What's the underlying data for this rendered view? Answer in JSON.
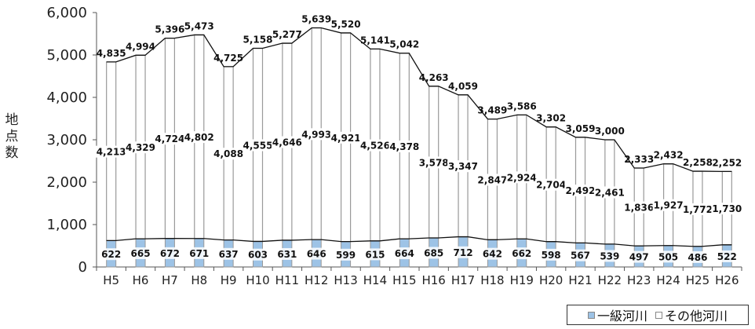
{
  "chart_data": {
    "type": "bar",
    "stacked": true,
    "categories": [
      "H5",
      "H6",
      "H7",
      "H8",
      "H9",
      "H10",
      "H11",
      "H12",
      "H13",
      "H14",
      "H15",
      "H16",
      "H17",
      "H18",
      "H19",
      "H20",
      "H21",
      "H22",
      "H23",
      "H24",
      "H25",
      "H26"
    ],
    "series": [
      {
        "name": "一級河川",
        "color": "#9dc3e6",
        "values": [
          622,
          665,
          672,
          671,
          637,
          603,
          631,
          646,
          599,
          615,
          664,
          685,
          712,
          642,
          662,
          598,
          567,
          539,
          497,
          505,
          486,
          522
        ],
        "labels": [
          "622",
          "665",
          "672",
          "671",
          "637",
          "603",
          "631",
          "646",
          "599",
          "615",
          "664",
          "685",
          "712",
          "642",
          "662",
          "598",
          "567",
          "539",
          "497",
          "505",
          "486",
          "522"
        ]
      },
      {
        "name": "その他河川",
        "color": "#ffffff",
        "values": [
          4213,
          4329,
          4724,
          4802,
          4088,
          4555,
          4646,
          4993,
          4921,
          4526,
          4378,
          3578,
          3347,
          2847,
          2924,
          2704,
          2492,
          2461,
          1836,
          1927,
          1772,
          1730
        ],
        "labels": [
          "4,213",
          "4,329",
          "4,724",
          "4,802",
          "4,088",
          "4,555",
          "4,646",
          "4,993",
          "4,921",
          "4,526",
          "4,378",
          "3,578",
          "3,347",
          "2,847",
          "2,924",
          "2,704",
          "2,492",
          "2,461",
          "1,836",
          "1,927",
          "1,772",
          "1,730"
        ]
      }
    ],
    "totals": [
      4835,
      4994,
      5396,
      5473,
      4725,
      5158,
      5277,
      5639,
      5520,
      5141,
      5042,
      4263,
      4059,
      3489,
      3586,
      3302,
      3059,
      3000,
      2333,
      2432,
      2258,
      2252
    ],
    "total_labels": [
      "4,835",
      "4,994",
      "5,396",
      "5,473",
      "4,725",
      "5,158",
      "5,277",
      "5,639",
      "5,520",
      "5,141",
      "5,042",
      "4,263",
      "4,059",
      "3,489",
      "3,586",
      "3,302",
      "3,059",
      "3,000",
      "2,333",
      "2,432",
      "2,258",
      "2,252"
    ],
    "ylabel": "地点数",
    "xlabel": "",
    "ylim": [
      0,
      6000
    ],
    "yticks": [
      0,
      1000,
      2000,
      3000,
      4000,
      5000,
      6000
    ],
    "ytick_labels": [
      "0",
      "1,000",
      "2,000",
      "3,000",
      "4,000",
      "5,000",
      "6,000"
    ],
    "grid": false,
    "legend_position": "bottom-right"
  }
}
